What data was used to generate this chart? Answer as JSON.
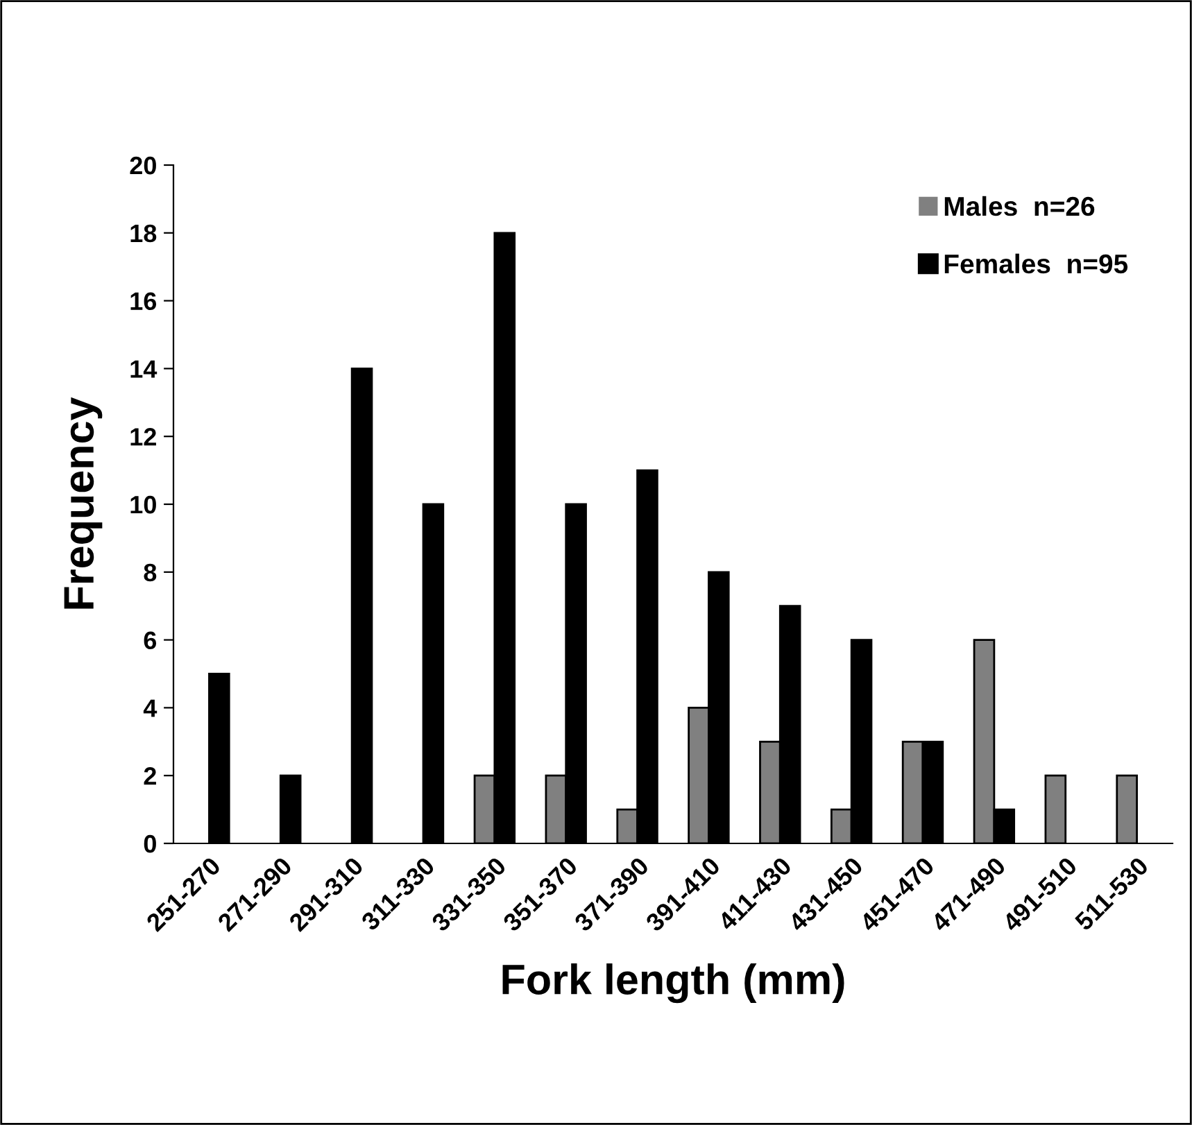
{
  "chart_data": {
    "type": "bar",
    "xlabel": "Fork length (mm)",
    "ylabel": "Frequency",
    "categories": [
      "251-270",
      "271-290",
      "291-310",
      "311-330",
      "331-350",
      "351-370",
      "371-390",
      "391-410",
      "411-430",
      "431-450",
      "451-470",
      "471-490",
      "491-510",
      "511-530"
    ],
    "series": [
      {
        "name": "Males  n=26",
        "color": "#808080",
        "values": [
          0,
          0,
          0,
          0,
          2,
          2,
          1,
          4,
          3,
          1,
          3,
          6,
          2,
          2
        ]
      },
      {
        "name": "Females  n=95",
        "color": "#000000",
        "values": [
          5,
          2,
          14,
          10,
          18,
          10,
          11,
          8,
          7,
          6,
          3,
          1,
          0,
          0
        ]
      }
    ],
    "ylim": [
      0,
      20
    ],
    "yticks": [
      0,
      2,
      4,
      6,
      8,
      10,
      12,
      14,
      16,
      18,
      20
    ],
    "grid": false,
    "legend": "top right"
  }
}
